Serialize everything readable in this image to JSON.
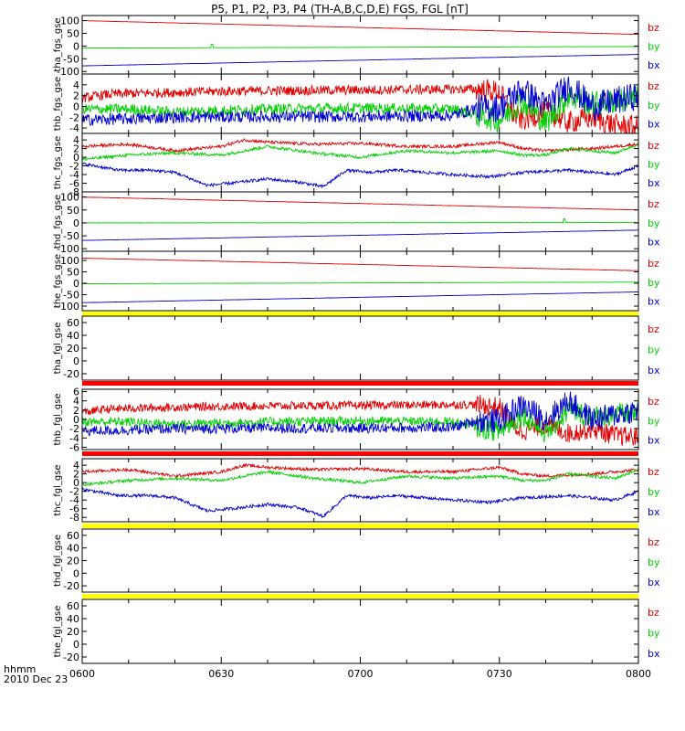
{
  "title": "P5, P1, P2, P3, P4 (TH-A,B,C,D,E) FGS, FGL [nT]",
  "colors": {
    "bz": "#e00000",
    "by": "#00d000",
    "bx": "#0000d0",
    "axis": "#000000",
    "yellow": "#ffff00",
    "red": "#ff0000"
  },
  "time_axis": {
    "tick_labels": [
      "0600",
      "0630",
      "0700",
      "0730",
      "0800"
    ],
    "tick_values_min": [
      0,
      30,
      60,
      90,
      120
    ],
    "range_min": [
      0,
      120
    ],
    "label_line1": "hhmm",
    "label_line2": "2010 Dec 23"
  },
  "legend": [
    "bz",
    "by",
    "bx"
  ],
  "chart_data": [
    {
      "type": "line",
      "ylabel": "tha_fgs_gse",
      "ylim": [
        -110,
        120
      ],
      "ticks": [
        100,
        50,
        0,
        -50,
        -100
      ],
      "tick_labels": [
        "100",
        "50",
        "0",
        "-50",
        "-100"
      ],
      "series": [
        {
          "name": "bz",
          "color": "bz",
          "x": [
            0,
            120
          ],
          "y": [
            100,
            46
          ],
          "noise": 0.6
        },
        {
          "name": "by",
          "color": "by",
          "x": [
            0,
            120
          ],
          "y": [
            -8,
            -2
          ],
          "noise": 0.4,
          "spikes": [
            [
              28,
              14
            ]
          ]
        },
        {
          "name": "bx",
          "color": "bx",
          "x": [
            0,
            120
          ],
          "y": [
            -78,
            -33
          ],
          "noise": 0.4
        }
      ]
    },
    {
      "type": "line",
      "ylabel": "thb_fgs_gse",
      "ylim": [
        -5,
        6
      ],
      "ticks": [
        4,
        2,
        0,
        -2,
        -4
      ],
      "tick_labels": [
        "4",
        "2",
        "0",
        "-2",
        "-4"
      ],
      "series": [
        {
          "name": "bz",
          "color": "bz",
          "x": [
            0,
            5,
            10,
            20,
            30,
            40,
            55,
            70,
            85,
            90,
            93,
            95,
            100,
            105,
            110,
            115,
            120
          ],
          "y": [
            1.5,
            2.2,
            2.4,
            2.6,
            2.8,
            2.9,
            3.0,
            3.1,
            3.2,
            2.7,
            -1.5,
            -2.5,
            -1.0,
            -3.0,
            -2.0,
            -3.5,
            -3.8
          ],
          "noise": 0.9
        },
        {
          "name": "by",
          "color": "by",
          "x": [
            0,
            10,
            20,
            40,
            60,
            80,
            85,
            90,
            95,
            100,
            105,
            110,
            120
          ],
          "y": [
            -0.5,
            -0.5,
            -1.0,
            -0.5,
            -0.3,
            -0.5,
            -1.5,
            -2.5,
            1.0,
            -3.0,
            2.0,
            0.5,
            1.5
          ],
          "noise": 1.0
        },
        {
          "name": "bx",
          "color": "bx",
          "x": [
            0,
            10,
            20,
            40,
            60,
            80,
            85,
            90,
            93,
            95,
            100,
            105,
            110,
            120
          ],
          "y": [
            -2.5,
            -2.3,
            -2.0,
            -1.9,
            -1.9,
            -1.7,
            -0.3,
            -0.3,
            2.0,
            3.0,
            0.0,
            4.0,
            0.0,
            2.0
          ],
          "noise": 1.1
        }
      ]
    },
    {
      "type": "line",
      "ylabel": "thc_fgs_gse",
      "ylim": [
        -8,
        5.5
      ],
      "ticks": [
        4,
        2,
        0,
        -2,
        -4,
        -6,
        -8
      ],
      "tick_labels": [
        "4",
        "2",
        "0",
        "-2",
        "-4",
        "-6",
        "-8"
      ],
      "series": [
        {
          "name": "bz",
          "color": "bz",
          "x": [
            0,
            10,
            20,
            30,
            35,
            40,
            50,
            60,
            70,
            80,
            90,
            95,
            100,
            110,
            120
          ],
          "y": [
            2.5,
            3.0,
            1.5,
            2.5,
            4.0,
            3.5,
            3.0,
            3.2,
            2.5,
            2.5,
            3.5,
            2.0,
            1.5,
            2.0,
            3.0
          ],
          "noise": 0.35
        },
        {
          "name": "by",
          "color": "by",
          "x": [
            0,
            10,
            20,
            30,
            40,
            50,
            60,
            70,
            80,
            90,
            95,
            100,
            105,
            110,
            115,
            120
          ],
          "y": [
            -0.5,
            0.5,
            1.0,
            0.5,
            2.5,
            1.0,
            0.0,
            1.5,
            1.0,
            1.5,
            0.5,
            0.5,
            2.0,
            1.5,
            1.0,
            3.0
          ],
          "noise": 0.35
        },
        {
          "name": "bx",
          "color": "bx",
          "x": [
            0,
            8,
            15,
            20,
            27,
            32,
            40,
            47,
            52,
            57,
            62,
            68,
            80,
            88,
            95,
            105,
            115,
            120
          ],
          "y": [
            -1.5,
            -3.0,
            -3.0,
            -3.5,
            -6.5,
            -6.0,
            -5.0,
            -5.8,
            -6.8,
            -3.0,
            -3.5,
            -3.0,
            -4.0,
            -4.5,
            -3.5,
            -3.0,
            -4.0,
            -2.0
          ],
          "noise": 0.35
        }
      ]
    },
    {
      "type": "line",
      "ylabel": "thd_fgs_gse",
      "ylim": [
        -110,
        120
      ],
      "ticks": [
        100,
        50,
        0,
        -50,
        -100
      ],
      "tick_labels": [
        "100",
        "50",
        "0",
        "-50",
        "-100"
      ],
      "series": [
        {
          "name": "bz",
          "color": "bz",
          "x": [
            0,
            120
          ],
          "y": [
            100,
            50
          ],
          "noise": 0.6
        },
        {
          "name": "by",
          "color": "by",
          "x": [
            0,
            120
          ],
          "y": [
            0,
            1
          ],
          "noise": 0.5,
          "spikes": [
            [
              104,
              15
            ]
          ]
        },
        {
          "name": "bx",
          "color": "bx",
          "x": [
            0,
            120
          ],
          "y": [
            -68,
            -28
          ],
          "noise": 0.4
        }
      ]
    },
    {
      "type": "line",
      "ylabel": "the_fgs_gse",
      "ylim": [
        -120,
        140
      ],
      "ticks": [
        100,
        50,
        0,
        -50,
        -100
      ],
      "tick_labels": [
        "100",
        "50",
        "0",
        "-50",
        "-100"
      ],
      "series": [
        {
          "name": "bz",
          "color": "bz",
          "x": [
            0,
            120
          ],
          "y": [
            110,
            55
          ],
          "noise": 0.6
        },
        {
          "name": "by",
          "color": "by",
          "x": [
            0,
            120
          ],
          "y": [
            -2,
            5
          ],
          "noise": 0.5
        },
        {
          "name": "bx",
          "color": "bx",
          "x": [
            0,
            120
          ],
          "y": [
            -85,
            -38
          ],
          "noise": 0.4
        }
      ]
    },
    {
      "type": "line",
      "ylabel": "tha_fgl_gse",
      "ylim": [
        -30,
        70
      ],
      "ticks": [
        60,
        40,
        20,
        0,
        -20
      ],
      "tick_labels": [
        "60",
        "40",
        "20",
        "0",
        "-20"
      ],
      "series": []
    },
    {
      "type": "line",
      "ylabel": "thb_fgl_gse",
      "ylim": [
        -6.5,
        6.5
      ],
      "ticks": [
        6,
        4,
        2,
        0,
        -2,
        -4,
        -6
      ],
      "tick_labels": [
        "6",
        "4",
        "2",
        "0",
        "-2",
        "-4",
        "-6"
      ],
      "series": [
        {
          "name": "bz",
          "color": "bz",
          "x": [
            0,
            5,
            10,
            20,
            30,
            40,
            55,
            70,
            85,
            90,
            93,
            95,
            100,
            105,
            110,
            115,
            120
          ],
          "y": [
            1.5,
            2.2,
            2.4,
            2.6,
            2.8,
            2.9,
            3.0,
            3.1,
            3.2,
            2.7,
            -1.5,
            -2.5,
            -1.0,
            -3.0,
            -2.0,
            -3.5,
            -3.8
          ],
          "noise": 0.9
        },
        {
          "name": "by",
          "color": "by",
          "x": [
            0,
            10,
            20,
            40,
            60,
            80,
            85,
            90,
            95,
            100,
            105,
            110,
            120
          ],
          "y": [
            -0.5,
            -0.5,
            -1.0,
            -0.5,
            -0.3,
            -0.5,
            -1.5,
            -2.5,
            1.0,
            -3.0,
            2.0,
            0.5,
            1.5
          ],
          "noise": 1.0
        },
        {
          "name": "bx",
          "color": "bx",
          "x": [
            0,
            10,
            20,
            40,
            60,
            80,
            85,
            90,
            93,
            95,
            100,
            105,
            110,
            120
          ],
          "y": [
            -2.5,
            -2.3,
            -2.0,
            -1.9,
            -1.9,
            -1.7,
            -0.3,
            -0.3,
            2.0,
            3.0,
            0.0,
            4.0,
            0.0,
            2.0
          ],
          "noise": 1.1
        }
      ]
    },
    {
      "type": "line",
      "ylabel": "thc_fgl_gse",
      "ylim": [
        -9,
        5.5
      ],
      "ticks": [
        4,
        2,
        0,
        -2,
        -4,
        -6,
        -8
      ],
      "tick_labels": [
        "4",
        "2",
        "0",
        "-2",
        "-4",
        "-6",
        "-8"
      ],
      "series": [
        {
          "name": "bz",
          "color": "bz",
          "x": [
            0,
            10,
            20,
            30,
            35,
            40,
            50,
            60,
            70,
            80,
            90,
            95,
            100,
            110,
            120
          ],
          "y": [
            2.5,
            3.0,
            1.5,
            2.5,
            4.0,
            3.5,
            3.0,
            3.2,
            2.5,
            2.5,
            3.5,
            2.0,
            1.5,
            2.0,
            3.0
          ],
          "noise": 0.35
        },
        {
          "name": "by",
          "color": "by",
          "x": [
            0,
            10,
            20,
            30,
            40,
            50,
            60,
            70,
            80,
            90,
            95,
            100,
            105,
            110,
            115,
            120
          ],
          "y": [
            -0.5,
            0.5,
            1.0,
            0.5,
            2.5,
            1.0,
            0.0,
            1.5,
            1.0,
            1.5,
            0.5,
            0.5,
            2.0,
            1.5,
            1.0,
            3.0
          ],
          "noise": 0.35
        },
        {
          "name": "bx",
          "color": "bx",
          "x": [
            0,
            8,
            15,
            20,
            27,
            32,
            40,
            47,
            52,
            57,
            62,
            68,
            80,
            88,
            95,
            105,
            115,
            120
          ],
          "y": [
            -1.5,
            -3.0,
            -3.0,
            -3.5,
            -6.5,
            -6.0,
            -5.0,
            -5.8,
            -7.8,
            -3.0,
            -3.5,
            -3.0,
            -4.0,
            -4.5,
            -3.5,
            -3.0,
            -4.0,
            -2.0
          ],
          "noise": 0.35
        }
      ]
    },
    {
      "type": "line",
      "ylabel": "thd_fgl_gse",
      "ylim": [
        -30,
        70
      ],
      "ticks": [
        60,
        40,
        20,
        0,
        -20
      ],
      "tick_labels": [
        "60",
        "40",
        "20",
        "0",
        "-20"
      ],
      "series": []
    },
    {
      "type": "line",
      "ylabel": "the_fgl_gse",
      "ylim": [
        -30,
        70
      ],
      "ticks": [
        60,
        40,
        20,
        0,
        -20
      ],
      "tick_labels": [
        "60",
        "40",
        "20",
        "0",
        "-20"
      ],
      "series": []
    }
  ],
  "separator_bars": [
    {
      "below_panel": 4,
      "colors": [
        "yellow"
      ]
    },
    {
      "below_panel": 5,
      "colors": [
        "red"
      ]
    },
    {
      "below_panel": 6,
      "colors": [
        "red"
      ]
    },
    {
      "below_panel": 7,
      "colors": [
        "yellow"
      ]
    },
    {
      "below_panel": 8,
      "colors": [
        "yellow"
      ]
    }
  ]
}
